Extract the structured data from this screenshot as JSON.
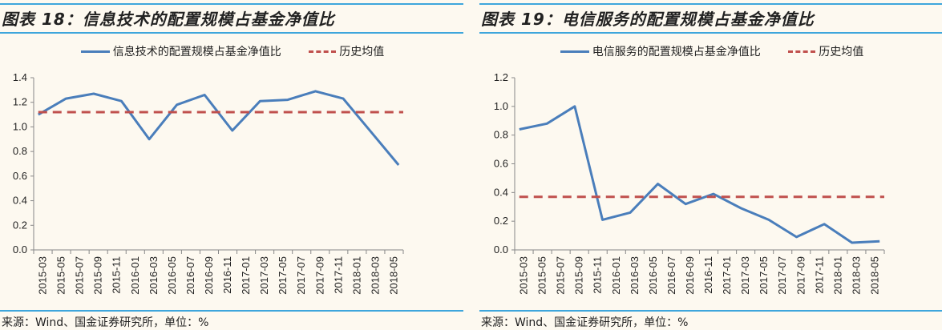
{
  "chart_data": [
    {
      "type": "line",
      "title": "图表 18：信息技术的配置规模占基金净值比",
      "source": "来源：Wind、国金证券研究所，单位：%",
      "x_tick_labels": [
        "2015-03",
        "2015-05",
        "2015-07",
        "2015-09",
        "2015-11",
        "2016-01",
        "2016-03",
        "2016-05",
        "2016-07",
        "2016-09",
        "2016-11",
        "2017-01",
        "2017-03",
        "2017-05",
        "2017-07",
        "2017-09",
        "2017-11",
        "2018-01",
        "2018-03",
        "2018-05"
      ],
      "x": [
        "2015-03",
        "2015-06",
        "2015-09",
        "2015-12",
        "2016-03",
        "2016-06",
        "2016-09",
        "2016-12",
        "2017-03",
        "2017-06",
        "2017-09",
        "2017-12",
        "2018-03",
        "2018-06"
      ],
      "series": [
        {
          "name": "信息技术的配置规模占基金净值比",
          "color": "#4a7ebb",
          "style": "solid",
          "values": [
            1.1,
            1.23,
            1.27,
            1.21,
            0.9,
            1.18,
            1.26,
            0.97,
            1.21,
            1.22,
            1.29,
            1.23,
            0.96,
            0.69
          ]
        },
        {
          "name": "历史均值",
          "color": "#c0504d",
          "style": "dashed",
          "values": [
            1.12,
            1.12,
            1.12,
            1.12,
            1.12,
            1.12,
            1.12,
            1.12,
            1.12,
            1.12,
            1.12,
            1.12,
            1.12,
            1.12
          ]
        }
      ],
      "ylim": [
        0,
        1.4
      ],
      "y_ticks": [
        "0.0",
        "0.2",
        "0.4",
        "0.6",
        "0.8",
        "1.0",
        "1.2",
        "1.4"
      ],
      "grid": false,
      "legend_position": "top"
    },
    {
      "type": "line",
      "title": "图表 19：电信服务的配置规模占基金净值比",
      "source": "来源：Wind、国金证券研究所，单位：%",
      "x_tick_labels": [
        "2015-03",
        "2015-05",
        "2015-07",
        "2015-09",
        "2015-11",
        "2016-01",
        "2016-03",
        "2016-05",
        "2016-07",
        "2016-09",
        "2016-11",
        "2017-01",
        "2017-03",
        "2017-05",
        "2017-07",
        "2017-09",
        "2017-11",
        "2018-01",
        "2018-03",
        "2018-05"
      ],
      "x": [
        "2015-03",
        "2015-06",
        "2015-09",
        "2015-12",
        "2016-03",
        "2016-06",
        "2016-09",
        "2016-12",
        "2017-03",
        "2017-06",
        "2017-09",
        "2017-12",
        "2018-03",
        "2018-06"
      ],
      "series": [
        {
          "name": "电信服务的配置规模占基金净值比",
          "color": "#4a7ebb",
          "style": "solid",
          "values": [
            0.84,
            0.88,
            1.0,
            0.21,
            0.26,
            0.46,
            0.32,
            0.39,
            0.29,
            0.21,
            0.09,
            0.18,
            0.05,
            0.06
          ]
        },
        {
          "name": "历史均值",
          "color": "#c0504d",
          "style": "dashed",
          "values": [
            0.37,
            0.37,
            0.37,
            0.37,
            0.37,
            0.37,
            0.37,
            0.37,
            0.37,
            0.37,
            0.37,
            0.37,
            0.37,
            0.37
          ]
        }
      ],
      "ylim": [
        0,
        1.2
      ],
      "y_ticks": [
        "0.0",
        "0.2",
        "0.4",
        "0.6",
        "0.8",
        "1.0",
        "1.2"
      ],
      "grid": false,
      "legend_position": "top"
    }
  ]
}
